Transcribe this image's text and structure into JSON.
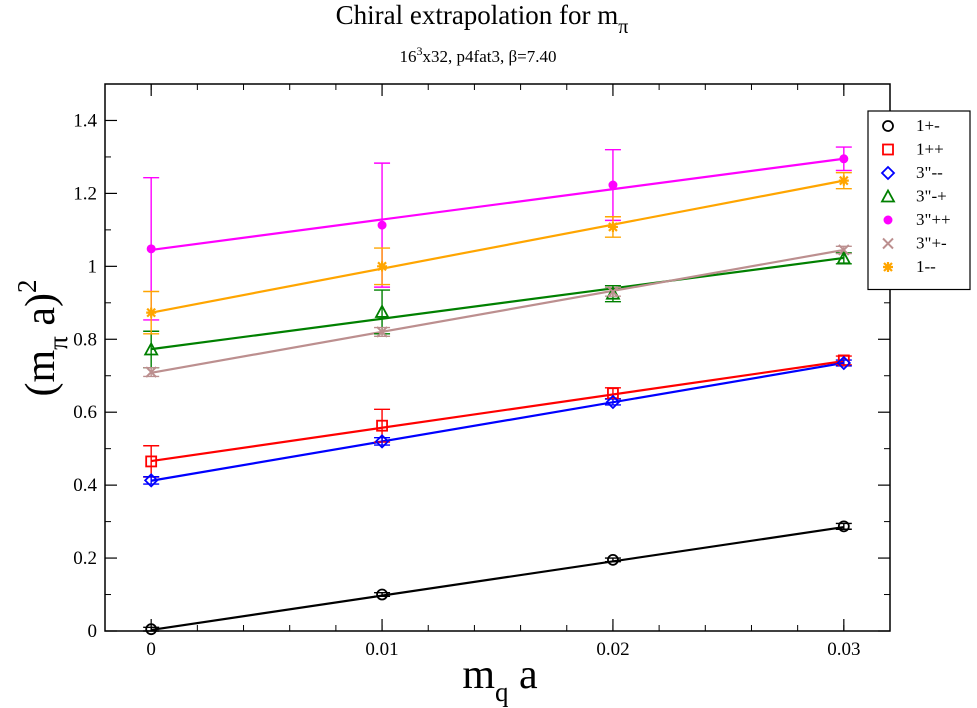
{
  "chart_data": {
    "type": "scatter",
    "title_main": "Chiral extrapolation for m",
    "title_sub": "π",
    "subtitle_base": "16",
    "subtitle_sup": "3",
    "subtitle_rest": "x32, p4fat3, β=7.40",
    "xlabel": {
      "main": "m",
      "sub": "q",
      "rest": " a"
    },
    "ylabel": {
      "open": "(m",
      "sub": "π",
      "mid": " a)",
      "sup": "2"
    },
    "xlim": [
      -0.002,
      0.032
    ],
    "ylim": [
      0,
      1.5
    ],
    "xticks": [
      0,
      0.01,
      0.02,
      0.03
    ],
    "xtick_labels": [
      "0",
      "0.01",
      "0.02",
      "0.03"
    ],
    "yticks": [
      0,
      0.2,
      0.4,
      0.6,
      0.8,
      1.0,
      1.2,
      1.4
    ],
    "ytick_labels": [
      "0",
      "0.2",
      "0.4",
      "0.6",
      "0.8",
      "1",
      "1.2",
      "1.4"
    ],
    "x": [
      0,
      0.01,
      0.02,
      0.03
    ],
    "series": [
      {
        "name": "1+-",
        "color": "#000000",
        "marker": "circle",
        "values": [
          0.005,
          0.1,
          0.195,
          0.287
        ],
        "errors": [
          0.005,
          0.005,
          0.005,
          0.008
        ],
        "fit": [
          0.003,
          0.285
        ]
      },
      {
        "name": "1++",
        "color": "#ff0000",
        "marker": "square",
        "values": [
          0.465,
          0.563,
          0.652,
          0.742
        ],
        "errors": [
          0.043,
          0.045,
          0.015,
          0.012
        ],
        "fit": [
          0.466,
          0.74
        ]
      },
      {
        "name": "3\"--",
        "color": "#0000ff",
        "marker": "diamond",
        "values": [
          0.413,
          0.52,
          0.628,
          0.735
        ],
        "errors": [
          0.01,
          0.01,
          0.008,
          0.008
        ],
        "fit": [
          0.412,
          0.735
        ]
      },
      {
        "name": "3\"-+",
        "color": "#008000",
        "marker": "triangle",
        "values": [
          0.772,
          0.875,
          0.925,
          1.022
        ],
        "errors": [
          0.05,
          0.06,
          0.022,
          0.015
        ],
        "fit": [
          0.773,
          1.023
        ]
      },
      {
        "name": "3\"++",
        "color": "#ff00ff",
        "marker": "circle-filled",
        "values": [
          1.048,
          1.113,
          1.223,
          1.295
        ],
        "errors": [
          0.195,
          0.17,
          0.097,
          0.032
        ],
        "fit": [
          1.045,
          1.295
        ]
      },
      {
        "name": "3\"+-",
        "color": "#bc8f8f",
        "marker": "cross",
        "values": [
          0.71,
          0.82,
          0.93,
          1.045
        ],
        "errors": [
          0.012,
          0.012,
          0.012,
          0.01
        ],
        "fit": [
          0.708,
          1.045
        ]
      },
      {
        "name": "1--",
        "color": "#ffa500",
        "marker": "star",
        "values": [
          0.873,
          1.0,
          1.108,
          1.235
        ],
        "errors": [
          0.058,
          0.05,
          0.028,
          0.022
        ],
        "fit": [
          0.873,
          1.235
        ]
      }
    ]
  }
}
